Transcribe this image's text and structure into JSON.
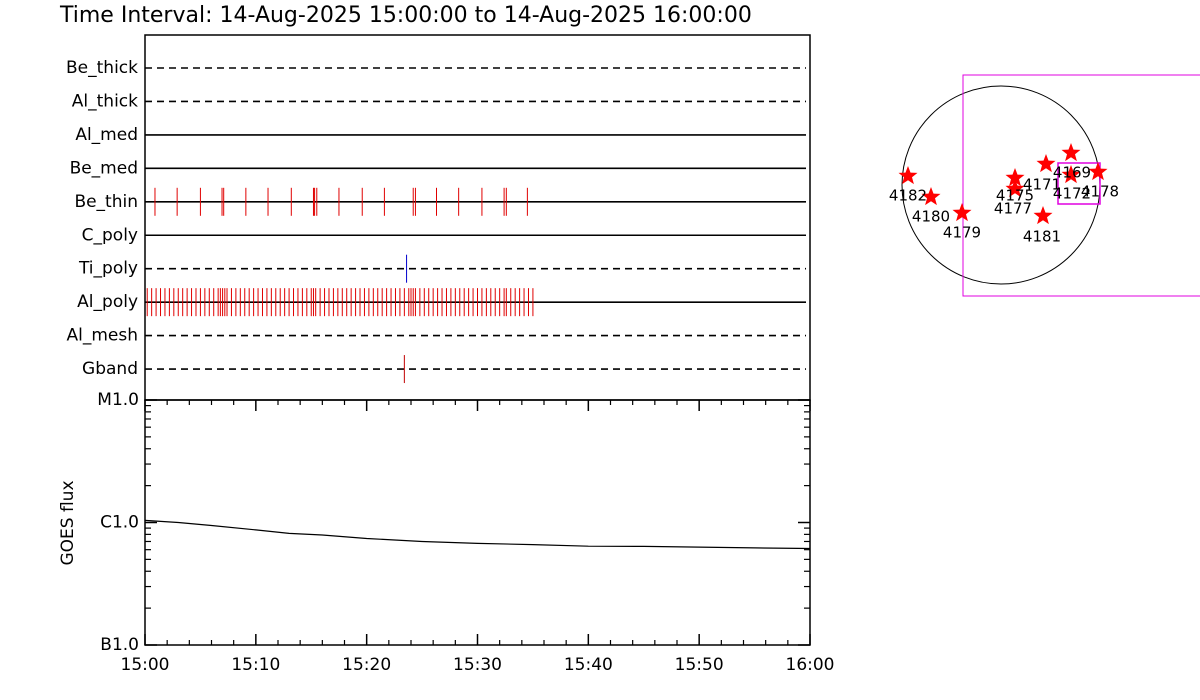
{
  "chart_data": [
    {
      "type": "event",
      "title": "Time Interval: 14-Aug-2025 15:00:00 to 14-Aug-2025 16:00:00",
      "xlim": [
        0,
        60
      ],
      "filters": [
        {
          "name": "Be_thick",
          "line_style": "dashed",
          "color": "#e00000",
          "events": []
        },
        {
          "name": "Al_thick",
          "line_style": "dashed",
          "color": "#e00000",
          "events": []
        },
        {
          "name": "Al_med",
          "line_style": "solid",
          "color": "#e00000",
          "events": []
        },
        {
          "name": "Be_med",
          "line_style": "solid",
          "color": "#e00000",
          "events": []
        },
        {
          "name": "Be_thin",
          "line_style": "solid",
          "color": "#e00000",
          "events": [
            0.9,
            2.9,
            5.0,
            6.95,
            7.1,
            9.1,
            11.1,
            13.2,
            15.2,
            15.3,
            15.5,
            17.5,
            19.6,
            21.6,
            24.2,
            24.4,
            26.3,
            28.3,
            30.4,
            32.4,
            32.6,
            34.5
          ]
        },
        {
          "name": "C_poly",
          "line_style": "solid",
          "color": "#e00000",
          "events": []
        },
        {
          "name": "Ti_poly",
          "line_style": "dashed",
          "color": "#0000cc",
          "events": [
            23.6
          ]
        },
        {
          "name": "Al_poly",
          "line_style": "solid",
          "color": "#e00000",
          "events": [
            0.2,
            0.6,
            1.0,
            1.4,
            1.8,
            2.2,
            2.6,
            3.0,
            3.4,
            3.8,
            4.2,
            4.6,
            5.0,
            5.4,
            5.8,
            6.2,
            6.6,
            6.8,
            7.0,
            7.2,
            7.4,
            7.8,
            8.2,
            8.6,
            9.0,
            9.4,
            9.8,
            10.2,
            10.6,
            11.0,
            11.4,
            11.8,
            12.2,
            12.6,
            13.0,
            13.4,
            13.8,
            14.2,
            14.6,
            15.0,
            15.2,
            15.4,
            15.8,
            16.2,
            16.6,
            17.0,
            17.4,
            17.8,
            18.2,
            18.6,
            19.0,
            19.4,
            19.8,
            20.2,
            20.6,
            21.0,
            21.4,
            21.8,
            22.2,
            22.6,
            23.0,
            23.4,
            23.8,
            24.0,
            24.2,
            24.4,
            24.8,
            25.2,
            25.6,
            26.0,
            26.4,
            26.8,
            27.2,
            27.6,
            28.0,
            28.4,
            28.8,
            29.2,
            29.6,
            30.0,
            30.4,
            30.8,
            31.2,
            31.6,
            32.0,
            32.4,
            32.6,
            33.0,
            33.4,
            33.8,
            34.2,
            34.6,
            35.0
          ]
        },
        {
          "name": "Al_mesh",
          "line_style": "dashed",
          "color": "#e00000",
          "events": []
        },
        {
          "name": "Gband",
          "line_style": "dashed",
          "color": "#c00000",
          "events": [
            23.4
          ]
        }
      ]
    },
    {
      "type": "line",
      "ylabel": "GOES flux",
      "log_y": true,
      "color": "#000000",
      "xlim": [
        0,
        60
      ],
      "xticks": [
        {
          "value": 0,
          "label": "15:00"
        },
        {
          "value": 10,
          "label": "15:10"
        },
        {
          "value": 20,
          "label": "15:20"
        },
        {
          "value": 30,
          "label": "15:30"
        },
        {
          "value": 40,
          "label": "15:40"
        },
        {
          "value": 50,
          "label": "15:50"
        },
        {
          "value": 60,
          "label": "16:00"
        }
      ],
      "xminor_ticks": [
        2,
        4,
        6,
        8,
        12,
        14,
        16,
        18,
        22,
        24,
        26,
        28,
        32,
        34,
        36,
        38,
        42,
        44,
        46,
        48,
        52,
        54,
        56,
        58
      ],
      "ylim": [
        1e-07,
        1e-05
      ],
      "yticks": [
        {
          "value": 1e-05,
          "label": "M1.0"
        },
        {
          "value": 1e-06,
          "label": "C1.0"
        },
        {
          "value": 1e-07,
          "label": "B1.0"
        }
      ],
      "yminor_ticks": [
        2e-07,
        3e-07,
        4e-07,
        5e-07,
        6e-07,
        7e-07,
        8e-07,
        9e-07,
        2e-06,
        3e-06,
        4e-06,
        5e-06,
        6e-06,
        7e-06,
        8e-06,
        9e-06
      ],
      "x": [
        0,
        3,
        6,
        10,
        13,
        16,
        20,
        25,
        30,
        35,
        40,
        45,
        50,
        55,
        60
      ],
      "values": [
        1.04e-06,
        1e-06,
        9.45e-07,
        8.7e-07,
        8.15e-07,
        7.9e-07,
        7.4e-07,
        7e-07,
        6.75e-07,
        6.6e-07,
        6.4e-07,
        6.38e-07,
        6.3e-07,
        6.2e-07,
        6.13e-07
      ]
    }
  ],
  "sun_map": {
    "regions": [
      {
        "label": "4182"
      },
      {
        "label": "4180"
      },
      {
        "label": "4179"
      },
      {
        "label": "4175"
      },
      {
        "label": "4177"
      },
      {
        "label": "4171"
      },
      {
        "label": "4169"
      },
      {
        "label": "4172"
      },
      {
        "label": "4178"
      },
      {
        "label": "4181"
      }
    ]
  }
}
